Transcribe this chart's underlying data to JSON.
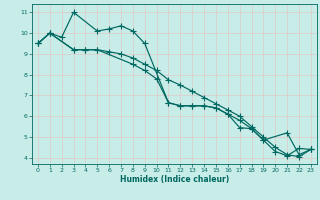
{
  "xlabel": "Humidex (Indice chaleur)",
  "bg_color": "#c8ece8",
  "grid_color": "#e0c8c8",
  "line_color": "#006860",
  "ylim": [
    3.7,
    11.4
  ],
  "xlim": [
    -0.5,
    23.5
  ],
  "yticks": [
    4,
    5,
    6,
    7,
    8,
    9,
    10,
    11
  ],
  "xticks": [
    0,
    1,
    2,
    3,
    4,
    5,
    6,
    7,
    8,
    9,
    10,
    11,
    12,
    13,
    14,
    15,
    16,
    17,
    18,
    19,
    20,
    21,
    22,
    23
  ],
  "series1_x": [
    0,
    1,
    2,
    3,
    5,
    6,
    7,
    8,
    9,
    11,
    12,
    13,
    14,
    15,
    16,
    17,
    18,
    19,
    20,
    21,
    22,
    23
  ],
  "series1_y": [
    9.5,
    10.0,
    9.8,
    11.0,
    10.1,
    10.2,
    10.35,
    10.1,
    9.5,
    6.65,
    6.5,
    6.5,
    6.5,
    6.4,
    6.1,
    5.8,
    5.4,
    4.85,
    4.3,
    4.1,
    4.45,
    4.4
  ],
  "series2_x": [
    0,
    1,
    3,
    4,
    5,
    6,
    7,
    8,
    9,
    10,
    11,
    12,
    13,
    14,
    15,
    16,
    17,
    18,
    19,
    20,
    21,
    22,
    23
  ],
  "series2_y": [
    9.5,
    10.0,
    9.2,
    9.2,
    9.2,
    9.1,
    9.0,
    8.8,
    8.5,
    8.2,
    7.75,
    7.5,
    7.2,
    6.9,
    6.6,
    6.3,
    6.0,
    5.5,
    5.0,
    4.5,
    4.15,
    4.05,
    4.4
  ],
  "series3_x": [
    0,
    1,
    3,
    4,
    5,
    8,
    9,
    10,
    11,
    12,
    13,
    14,
    15,
    16,
    17,
    18,
    19,
    21,
    22,
    23
  ],
  "series3_y": [
    9.5,
    10.0,
    9.2,
    9.2,
    9.2,
    8.5,
    8.2,
    7.8,
    6.65,
    6.5,
    6.5,
    6.5,
    6.4,
    6.1,
    5.45,
    5.4,
    4.85,
    5.2,
    4.15,
    4.4
  ]
}
